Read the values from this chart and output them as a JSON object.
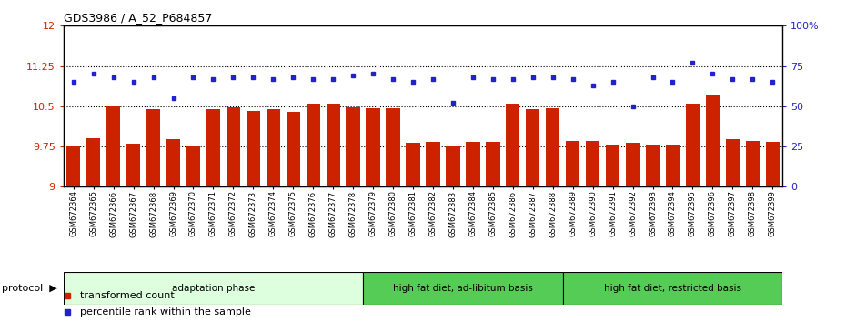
{
  "title": "GDS3986 / A_52_P684857",
  "samples": [
    "GSM672364",
    "GSM672365",
    "GSM672366",
    "GSM672367",
    "GSM672368",
    "GSM672369",
    "GSM672370",
    "GSM672371",
    "GSM672372",
    "GSM672373",
    "GSM672374",
    "GSM672375",
    "GSM672376",
    "GSM672377",
    "GSM672378",
    "GSM672379",
    "GSM672380",
    "GSM672381",
    "GSM672382",
    "GSM672383",
    "GSM672384",
    "GSM672385",
    "GSM672386",
    "GSM672387",
    "GSM672388",
    "GSM672389",
    "GSM672390",
    "GSM672391",
    "GSM672392",
    "GSM672393",
    "GSM672394",
    "GSM672395",
    "GSM672396",
    "GSM672397",
    "GSM672398",
    "GSM672399"
  ],
  "bar_values": [
    9.75,
    9.9,
    10.5,
    9.8,
    10.45,
    9.88,
    9.75,
    10.45,
    10.48,
    10.42,
    10.45,
    10.4,
    10.55,
    10.55,
    10.48,
    10.47,
    10.47,
    9.82,
    9.83,
    9.75,
    9.83,
    9.83,
    10.55,
    10.44,
    10.47,
    9.85,
    9.86,
    9.78,
    9.82,
    9.78,
    9.78,
    10.55,
    10.72,
    9.88,
    9.85,
    9.83
  ],
  "blue_values": [
    65,
    70,
    68,
    65,
    68,
    55,
    68,
    67,
    68,
    68,
    67,
    68,
    67,
    67,
    69,
    70,
    67,
    65,
    67,
    52,
    68,
    67,
    67,
    68,
    68,
    67,
    63,
    65,
    50,
    68,
    65,
    77,
    70,
    67,
    67,
    65
  ],
  "ylim_left": [
    9,
    12
  ],
  "ylim_right": [
    0,
    100
  ],
  "yticks_left": [
    9,
    9.75,
    10.5,
    11.25,
    12
  ],
  "yticks_right": [
    0,
    25,
    50,
    75,
    100
  ],
  "ytick_labels_left": [
    "9",
    "9.75",
    "10.5",
    "11.25",
    "12"
  ],
  "ytick_labels_right": [
    "0",
    "25",
    "50",
    "75",
    "100%"
  ],
  "hlines": [
    9.75,
    10.5,
    11.25
  ],
  "bar_color": "#cc2200",
  "blue_color": "#2222cc",
  "group_configs": [
    {
      "start": 0,
      "end": 15,
      "label": "adaptation phase",
      "color": "#ddffdd"
    },
    {
      "start": 15,
      "end": 25,
      "label": "high fat diet, ad-libitum basis",
      "color": "#55cc55"
    },
    {
      "start": 25,
      "end": 36,
      "label": "high fat diet, restricted basis",
      "color": "#55cc55"
    }
  ],
  "legend_items": [
    {
      "color": "#cc2200",
      "label": "transformed count"
    },
    {
      "color": "#2222cc",
      "label": "percentile rank within the sample"
    }
  ],
  "bar_bottom": 9,
  "bar_width": 0.7
}
